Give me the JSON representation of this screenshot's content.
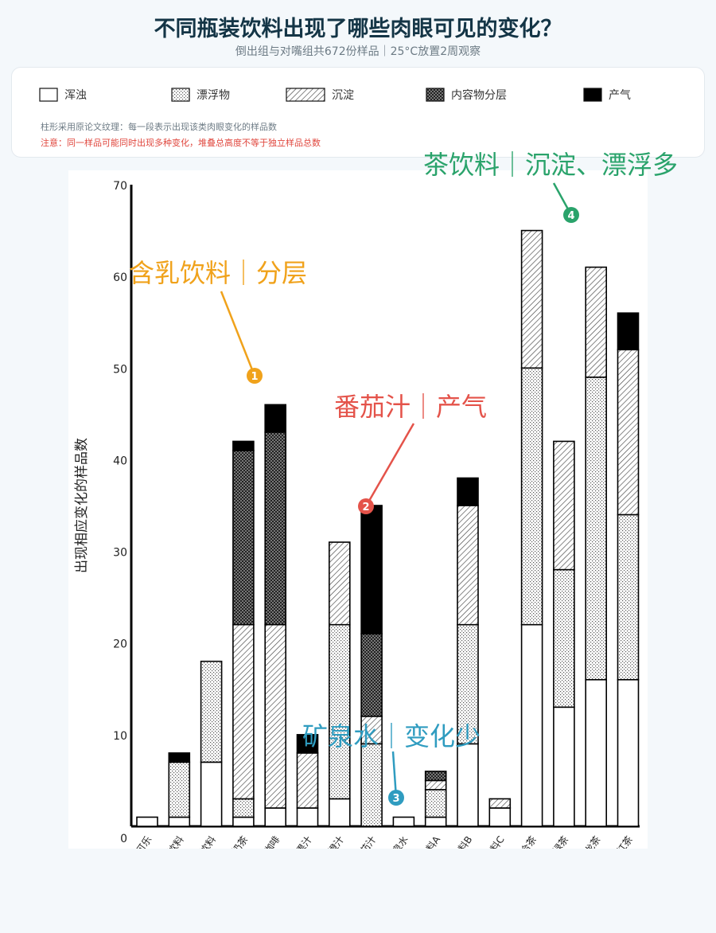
{
  "header": {
    "title": "不同瓶装饮料出现了哪些肉眼可见的变化？",
    "subtitle": "倒出组与对嘴组共672份样品｜25°C放置2周观察"
  },
  "legend": {
    "items": [
      {
        "label": "浑浊",
        "pattern": "white"
      },
      {
        "label": "漂浮物",
        "pattern": "dots"
      },
      {
        "label": "沉淀",
        "pattern": "hatch"
      },
      {
        "label": "内容物分层",
        "pattern": "cross"
      },
      {
        "label": "产气",
        "pattern": "black"
      }
    ],
    "note": "柱形采用原论文纹理：每一段表示出现该类肉眼变化的样品数",
    "warning": "注意：同一样品可能同时出现多种变化，堆叠总高度不等于独立样品总数"
  },
  "annotations": [
    {
      "num": "1",
      "text": "含乳饮料｜分层",
      "color": "#f0a21b"
    },
    {
      "num": "2",
      "text": "番茄汁｜产气",
      "color": "#e4534a"
    },
    {
      "num": "3",
      "text": "矿泉水｜变化少",
      "color": "#2f9cc0"
    },
    {
      "num": "4",
      "text": "茶饮料｜沉淀、漂浮多",
      "color": "#2aa36b"
    }
  ],
  "chart_data": {
    "type": "bar",
    "stacked": true,
    "ylabel": "出现相应变化的样品数",
    "ylim": [
      0,
      70
    ],
    "yticks": [
      0,
      10,
      20,
      30,
      40,
      50,
      60,
      70
    ],
    "categories": [
      "可乐",
      "无果汁苏打饮料",
      "含果汁苏打饮料",
      "奶茶",
      "奶咖啡",
      "苹果汁",
      "橙汁",
      "番茄汁",
      "矿泉水",
      "运动饮料A",
      "运动饮料B",
      "运动饮料C",
      "混合茶",
      "绿茶",
      "乌龙茶",
      "纯红茶"
    ],
    "series": [
      {
        "name": "浑浊",
        "values": [
          1,
          1,
          7,
          1,
          2,
          2,
          3,
          0,
          1,
          1,
          9,
          2,
          22,
          13,
          16,
          16
        ]
      },
      {
        "name": "漂浮物",
        "values": [
          0,
          6,
          11,
          2,
          0,
          0,
          19,
          9,
          0,
          3,
          13,
          0,
          28,
          15,
          33,
          18
        ]
      },
      {
        "name": "沉淀",
        "values": [
          0,
          0,
          0,
          19,
          20,
          6,
          9,
          3,
          0,
          1,
          13,
          1,
          15,
          14,
          12,
          18
        ]
      },
      {
        "name": "内容物分层",
        "values": [
          0,
          0,
          0,
          19,
          21,
          0,
          0,
          9,
          0,
          1,
          0,
          0,
          0,
          0,
          0,
          0
        ]
      },
      {
        "name": "产气",
        "values": [
          0,
          1,
          0,
          1,
          3,
          2,
          0,
          14,
          0,
          0,
          3,
          0,
          0,
          0,
          0,
          4
        ]
      }
    ]
  }
}
